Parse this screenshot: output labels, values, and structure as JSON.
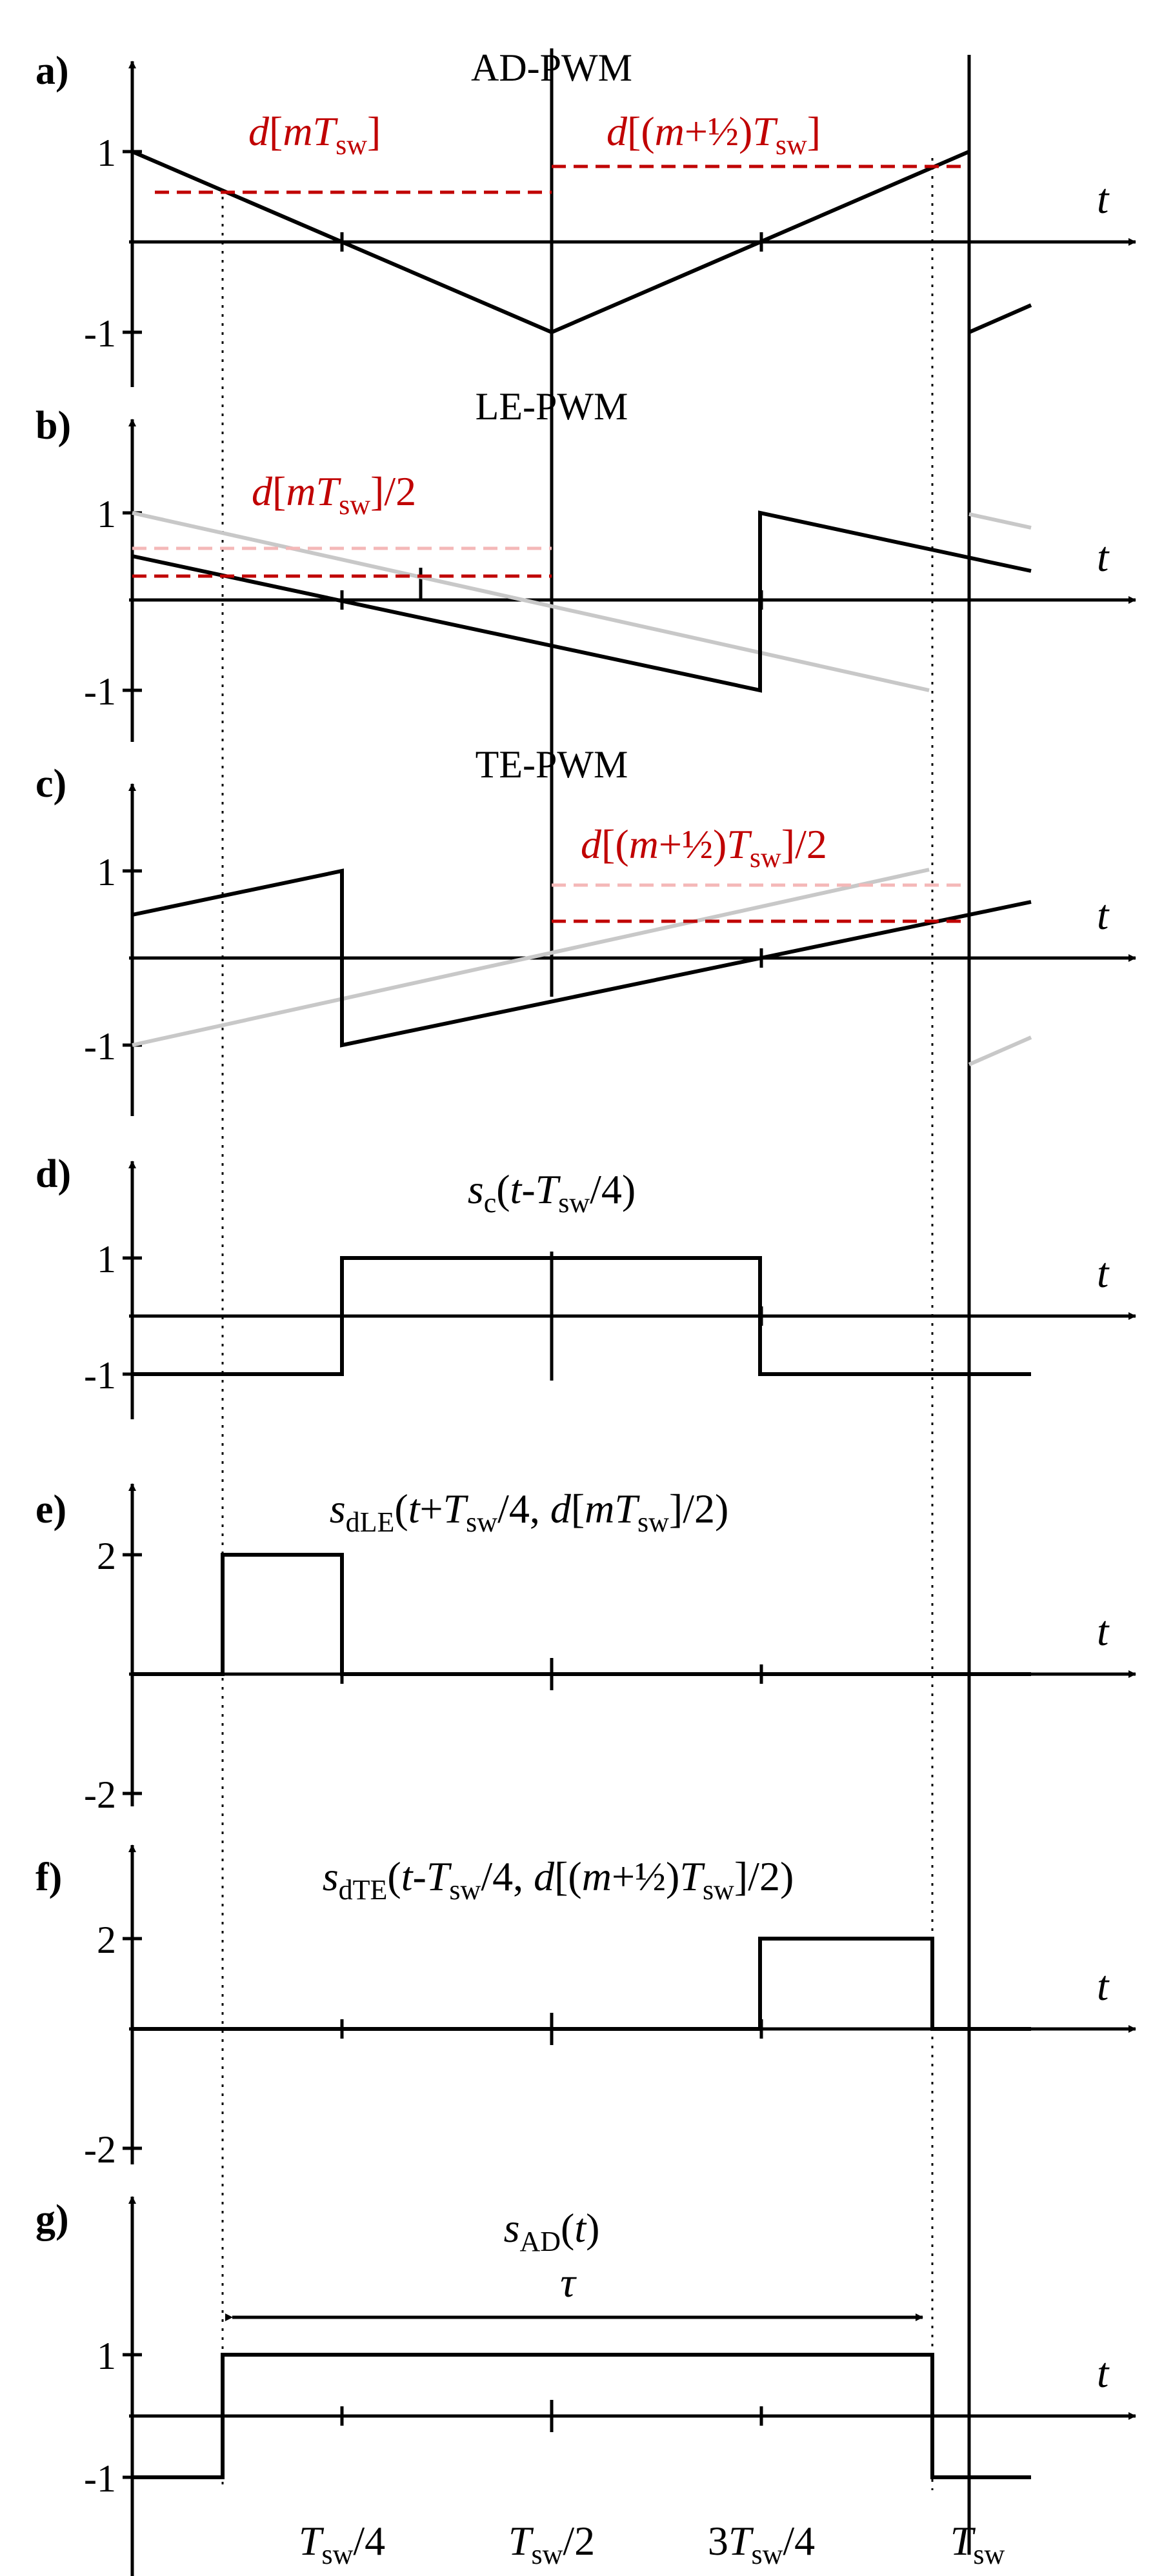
{
  "panels": [
    {
      "key": "a",
      "letter": "a)",
      "title": "AD-PWM",
      "ticks": [
        "1",
        "-1"
      ]
    },
    {
      "key": "b",
      "letter": "b)",
      "title": "LE-PWM",
      "ticks": [
        "1",
        "-1"
      ]
    },
    {
      "key": "c",
      "letter": "c)",
      "title": "TE-PWM",
      "ticks": [
        "1",
        "-1"
      ]
    },
    {
      "key": "d",
      "letter": "d)",
      "ticks": [
        "1",
        "-1"
      ]
    },
    {
      "key": "e",
      "letter": "e)",
      "ticks": [
        "2",
        "-2"
      ]
    },
    {
      "key": "f",
      "letter": "f)",
      "ticks": [
        "2",
        "-2"
      ]
    },
    {
      "key": "g",
      "letter": "g)",
      "ticks": [
        "1",
        "-1"
      ]
    }
  ],
  "axis_var": "t",
  "ad_pwm": {
    "d_left": {
      "d": "d",
      "open": "[",
      "m": "m",
      "T": "T",
      "sub": "sw",
      "close": "]"
    },
    "d_right": {
      "d": "d",
      "open": "[(",
      "m": "m",
      "plus": "+½)",
      "T": "T",
      "sub": "sw",
      "close": "]"
    }
  },
  "le_pwm": {
    "d": "d",
    "open": "[",
    "m": "m",
    "T": "T",
    "sub": "sw",
    "close": "]/2"
  },
  "te_pwm": {
    "d": "d",
    "open": "[(",
    "m": "m",
    "plus": "+½)",
    "T": "T",
    "sub": "sw",
    "close": "]/2"
  },
  "sc": {
    "s": "s",
    "sub": "c",
    "open": "(",
    "t": "t",
    "minus": "-",
    "T": "T",
    "sw": "sw",
    "close": "/4)"
  },
  "sdle": {
    "s": "s",
    "sub": "dLE",
    "open": "(",
    "t": "t",
    "plus": "+",
    "T": "T",
    "sw": "sw",
    "mid": "/4, ",
    "d": "d",
    "br": "[",
    "m": "m",
    "T2": "T",
    "sw2": "sw",
    "close": "]/2)"
  },
  "sdte": {
    "s": "s",
    "sub": "dTE",
    "open": "(",
    "t": "t",
    "minus": "-",
    "T": "T",
    "sw": "sw",
    "mid": "/4, ",
    "d": "d",
    "br": "[(",
    "m": "m",
    "plus": "+½)",
    "T2": "T",
    "sw2": "sw",
    "close": "]/2)"
  },
  "sad": {
    "s": "s",
    "sub": "AD",
    "open": "(",
    "t": "t",
    "close": ")"
  },
  "tau": "τ",
  "x_ticks": [
    {
      "pre": "",
      "T": "T",
      "sub": "sw",
      "post": "/4"
    },
    {
      "pre": "",
      "T": "T",
      "sub": "sw",
      "post": "/2"
    },
    {
      "pre": "3",
      "T": "T",
      "sub": "sw",
      "post": "/4"
    },
    {
      "pre": "",
      "T": "T",
      "sub": "sw",
      "post": ""
    }
  ],
  "colors": {
    "black": "#000000",
    "red": "#c00000",
    "light_red": "#f4b8b8",
    "gray": "#c8c8c8"
  }
}
